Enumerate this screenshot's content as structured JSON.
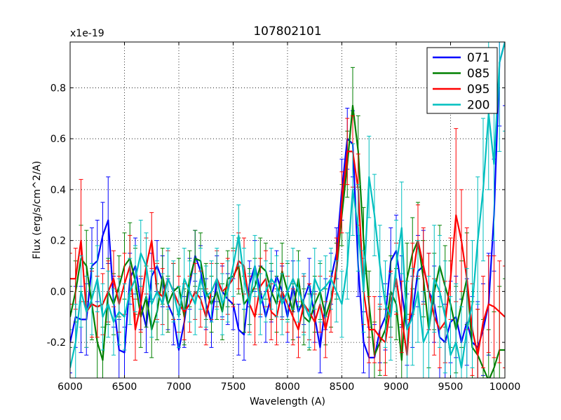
{
  "chart_data": {
    "type": "line",
    "title": "107802101",
    "xlabel": "Wavelength (A)",
    "ylabel": "Flux (erg/s/cm^2/A)",
    "y_scale_label": "x1e-19",
    "xlim": [
      6000,
      10000
    ],
    "ylim": [
      -0.34,
      0.98
    ],
    "grid": true,
    "legend_position": "top-right",
    "x_ticks": [
      6000,
      6500,
      7000,
      7500,
      8000,
      8500,
      9000,
      9500,
      10000
    ],
    "x_tick_labels": [
      "6000",
      "6500",
      "7000",
      "7500",
      "8000",
      "8500",
      "9000",
      "9500",
      "10000"
    ],
    "y_ticks": [
      -0.2,
      0.0,
      0.2,
      0.4,
      0.6,
      0.8
    ],
    "y_tick_labels": [
      "-0.2",
      "0.0",
      "0.2",
      "0.4",
      "0.6",
      "0.8"
    ],
    "series": [
      {
        "name": "071",
        "color": "#0000ff",
        "x": [
          6000,
          6050,
          6100,
          6150,
          6200,
          6250,
          6300,
          6350,
          6400,
          6450,
          6500,
          6550,
          6600,
          6650,
          6700,
          6750,
          6800,
          6850,
          6900,
          6950,
          7000,
          7050,
          7100,
          7150,
          7200,
          7250,
          7300,
          7350,
          7400,
          7450,
          7500,
          7550,
          7600,
          7650,
          7700,
          7750,
          7800,
          7850,
          7900,
          7950,
          8000,
          8050,
          8100,
          8150,
          8200,
          8250,
          8300,
          8350,
          8400,
          8450,
          8500,
          8550,
          8600,
          8650,
          8700,
          8750,
          8800,
          8850,
          8900,
          8950,
          9000,
          9050,
          9100,
          9150,
          9200,
          9250,
          9300,
          9350,
          9400,
          9450,
          9500,
          9550,
          9600,
          9650,
          9700,
          9750,
          9800,
          9850,
          9900,
          9950,
          10000
        ],
        "y": [
          -0.2,
          -0.1,
          -0.11,
          -0.11,
          0.1,
          0.12,
          0.22,
          0.28,
          -0.04,
          -0.23,
          -0.24,
          0.05,
          0.1,
          -0.05,
          -0.14,
          0.06,
          0.1,
          0.04,
          -0.05,
          -0.1,
          -0.23,
          -0.12,
          0.03,
          0.14,
          0.08,
          -0.05,
          -0.12,
          0.05,
          0.0,
          -0.03,
          -0.05,
          -0.15,
          -0.17,
          0.03,
          0.1,
          0.0,
          -0.1,
          -0.02,
          0.06,
          0.0,
          -0.1,
          0.02,
          -0.08,
          -0.03,
          0.03,
          -0.1,
          -0.22,
          -0.05,
          0.05,
          0.15,
          0.4,
          0.6,
          0.58,
          0.1,
          -0.2,
          -0.26,
          -0.26,
          -0.15,
          -0.1,
          0.12,
          0.16,
          0.0,
          -0.15,
          -0.08,
          0.08,
          0.1,
          0.0,
          -0.05,
          -0.18,
          -0.2,
          -0.12,
          -0.1,
          -0.2,
          -0.12,
          -0.2,
          -0.22,
          -0.15,
          -0.05,
          0.3,
          0.9,
          0.98
        ],
        "err": [
          0.12,
          0.12,
          0.13,
          0.14,
          0.15,
          0.16,
          0.13,
          0.17,
          0.1,
          0.12,
          0.1,
          0.1,
          0.11,
          0.1,
          0.1,
          0.09,
          0.1,
          0.1,
          0.1,
          0.11,
          0.12,
          0.1,
          0.1,
          0.1,
          0.1,
          0.1,
          0.1,
          0.09,
          0.1,
          0.1,
          0.1,
          0.1,
          0.1,
          0.09,
          0.1,
          0.1,
          0.1,
          0.1,
          0.1,
          0.1,
          0.1,
          0.1,
          0.1,
          0.1,
          0.1,
          0.1,
          0.1,
          0.1,
          0.1,
          0.1,
          0.12,
          0.12,
          0.13,
          0.12,
          0.12,
          0.12,
          0.13,
          0.13,
          0.13,
          0.13,
          0.14,
          0.14,
          0.14,
          0.14,
          0.14,
          0.14,
          0.15,
          0.15,
          0.16,
          0.15,
          0.16,
          0.16,
          0.17,
          0.17,
          0.18,
          0.18,
          0.18,
          0.2,
          0.22,
          0.25,
          0.25
        ]
      },
      {
        "name": "085",
        "color": "#008000",
        "x": [
          6000,
          6050,
          6100,
          6150,
          6200,
          6250,
          6300,
          6350,
          6400,
          6450,
          6500,
          6550,
          6600,
          6650,
          6700,
          6750,
          6800,
          6850,
          6900,
          6950,
          7000,
          7050,
          7100,
          7150,
          7200,
          7250,
          7300,
          7350,
          7400,
          7450,
          7500,
          7550,
          7600,
          7650,
          7700,
          7750,
          7800,
          7850,
          7900,
          7950,
          8000,
          8050,
          8100,
          8150,
          8200,
          8250,
          8300,
          8350,
          8400,
          8450,
          8500,
          8550,
          8600,
          8650,
          8700,
          8750,
          8800,
          8850,
          8900,
          8950,
          9000,
          9050,
          9100,
          9150,
          9200,
          9250,
          9300,
          9350,
          9400,
          9450,
          9500,
          9550,
          9600,
          9650,
          9700,
          9750,
          9800,
          9850,
          9900,
          9950,
          10000
        ],
        "y": [
          -0.1,
          0.0,
          0.13,
          0.1,
          -0.05,
          -0.2,
          -0.27,
          0.0,
          -0.05,
          0.02,
          0.1,
          0.13,
          0.04,
          -0.1,
          -0.02,
          -0.15,
          -0.08,
          0.06,
          -0.05,
          0.0,
          0.02,
          -0.1,
          0.05,
          0.13,
          0.12,
          0.0,
          -0.05,
          0.0,
          -0.08,
          0.05,
          0.06,
          0.1,
          -0.05,
          -0.02,
          0.02,
          0.1,
          0.08,
          0.0,
          -0.05,
          0.08,
          0.0,
          -0.08,
          0.05,
          -0.1,
          -0.12,
          -0.05,
          0.0,
          -0.1,
          -0.03,
          0.08,
          0.3,
          0.5,
          0.73,
          0.55,
          0.2,
          -0.05,
          -0.25,
          -0.2,
          -0.15,
          0.0,
          -0.05,
          -0.27,
          0.05,
          0.15,
          0.2,
          0.05,
          -0.15,
          0.0,
          0.1,
          0.02,
          -0.05,
          -0.15,
          -0.05,
          0.05,
          -0.22,
          -0.25,
          -0.3,
          -0.35,
          -0.3,
          -0.23,
          -0.23
        ],
        "err": [
          0.12,
          0.12,
          0.13,
          0.14,
          0.14,
          0.14,
          0.13,
          0.13,
          0.12,
          0.12,
          0.13,
          0.14,
          0.13,
          0.12,
          0.12,
          0.11,
          0.11,
          0.11,
          0.11,
          0.11,
          0.11,
          0.11,
          0.11,
          0.11,
          0.11,
          0.11,
          0.11,
          0.11,
          0.11,
          0.11,
          0.11,
          0.11,
          0.11,
          0.11,
          0.11,
          0.11,
          0.11,
          0.11,
          0.11,
          0.11,
          0.11,
          0.11,
          0.11,
          0.11,
          0.11,
          0.11,
          0.11,
          0.11,
          0.11,
          0.11,
          0.12,
          0.13,
          0.15,
          0.14,
          0.13,
          0.13,
          0.13,
          0.13,
          0.13,
          0.14,
          0.14,
          0.14,
          0.14,
          0.14,
          0.15,
          0.15,
          0.15,
          0.15,
          0.16,
          0.16,
          0.17,
          0.17,
          0.17,
          0.18,
          0.18,
          0.18,
          0.19,
          0.2,
          0.22,
          0.25,
          0.28
        ]
      },
      {
        "name": "095",
        "color": "#ff0000",
        "x": [
          6000,
          6050,
          6100,
          6150,
          6200,
          6250,
          6300,
          6350,
          6400,
          6450,
          6500,
          6550,
          6600,
          6650,
          6700,
          6750,
          6800,
          6850,
          6900,
          6950,
          7000,
          7050,
          7100,
          7150,
          7200,
          7250,
          7300,
          7350,
          7400,
          7450,
          7500,
          7550,
          7600,
          7650,
          7700,
          7750,
          7800,
          7850,
          7900,
          7950,
          8000,
          8050,
          8100,
          8150,
          8200,
          8250,
          8300,
          8350,
          8400,
          8450,
          8500,
          8550,
          8600,
          8650,
          8700,
          8750,
          8800,
          8850,
          8900,
          8950,
          9000,
          9050,
          9100,
          9150,
          9200,
          9250,
          9300,
          9350,
          9400,
          9450,
          9500,
          9550,
          9600,
          9650,
          9700,
          9750,
          9800,
          9850,
          9900,
          9950,
          10000
        ],
        "y": [
          0.05,
          0.05,
          0.2,
          -0.08,
          -0.05,
          -0.06,
          -0.05,
          0.0,
          0.05,
          -0.05,
          0.03,
          0.1,
          -0.15,
          -0.05,
          0.1,
          0.2,
          0.0,
          -0.02,
          0.05,
          0.0,
          -0.05,
          -0.08,
          -0.05,
          0.0,
          -0.03,
          -0.1,
          0.0,
          0.05,
          0.0,
          0.02,
          0.05,
          0.12,
          0.1,
          -0.05,
          -0.1,
          0.02,
          0.05,
          -0.08,
          -0.1,
          0.0,
          -0.05,
          -0.1,
          -0.15,
          -0.05,
          -0.08,
          -0.12,
          -0.05,
          -0.15,
          -0.05,
          0.1,
          0.35,
          0.55,
          0.55,
          0.4,
          0.0,
          -0.15,
          -0.15,
          -0.18,
          -0.2,
          -0.05,
          0.05,
          -0.1,
          -0.25,
          0.05,
          0.2,
          0.1,
          0.0,
          -0.1,
          -0.15,
          -0.12,
          0.05,
          0.3,
          0.2,
          0.05,
          -0.15,
          -0.25,
          -0.12,
          -0.05,
          -0.06,
          -0.08,
          -0.1
        ],
        "err": [
          0.1,
          0.12,
          0.24,
          0.14,
          0.13,
          0.12,
          0.12,
          0.12,
          0.11,
          0.11,
          0.12,
          0.12,
          0.12,
          0.11,
          0.11,
          0.11,
          0.11,
          0.11,
          0.11,
          0.11,
          0.11,
          0.11,
          0.11,
          0.11,
          0.11,
          0.11,
          0.11,
          0.11,
          0.11,
          0.11,
          0.11,
          0.11,
          0.11,
          0.11,
          0.11,
          0.11,
          0.11,
          0.11,
          0.11,
          0.11,
          0.11,
          0.11,
          0.11,
          0.11,
          0.11,
          0.11,
          0.11,
          0.11,
          0.11,
          0.11,
          0.12,
          0.13,
          0.14,
          0.14,
          0.13,
          0.13,
          0.13,
          0.13,
          0.13,
          0.13,
          0.14,
          0.14,
          0.14,
          0.14,
          0.14,
          0.15,
          0.15,
          0.15,
          0.15,
          0.16,
          0.16,
          0.34,
          0.2,
          0.2,
          0.18,
          0.18,
          0.18,
          0.19,
          0.2,
          0.2,
          0.2
        ]
      },
      {
        "name": "200",
        "color": "#00bfbf",
        "x": [
          6000,
          6050,
          6100,
          6150,
          6200,
          6250,
          6300,
          6350,
          6400,
          6450,
          6500,
          6550,
          6600,
          6650,
          6700,
          6750,
          6800,
          6850,
          6900,
          6950,
          7000,
          7050,
          7100,
          7150,
          7200,
          7250,
          7300,
          7350,
          7400,
          7450,
          7500,
          7550,
          7600,
          7650,
          7700,
          7750,
          7800,
          7850,
          7900,
          7950,
          8000,
          8050,
          8100,
          8150,
          8200,
          8250,
          8300,
          8350,
          8400,
          8450,
          8500,
          8550,
          8600,
          8650,
          8700,
          8750,
          8800,
          8850,
          8900,
          8950,
          9000,
          9050,
          9100,
          9150,
          9200,
          9250,
          9300,
          9350,
          9400,
          9450,
          9500,
          9550,
          9600,
          9650,
          9700,
          9750,
          9800,
          9850,
          9900,
          9950,
          10000
        ],
        "y": [
          -0.3,
          -0.2,
          0.0,
          -0.08,
          -0.03,
          0.05,
          -0.1,
          -0.05,
          -0.12,
          -0.08,
          -0.1,
          0.0,
          0.05,
          0.15,
          0.1,
          -0.05,
          0.0,
          -0.05,
          0.05,
          0.0,
          -0.1,
          0.05,
          0.0,
          -0.05,
          0.05,
          -0.02,
          0.0,
          0.05,
          -0.05,
          0.0,
          0.1,
          0.22,
          0.05,
          -0.05,
          0.1,
          -0.05,
          0.0,
          0.05,
          0.02,
          -0.05,
          0.0,
          0.05,
          0.0,
          -0.05,
          -0.1,
          0.05,
          0.0,
          0.02,
          0.05,
          0.0,
          -0.05,
          0.1,
          0.4,
          0.25,
          0.0,
          0.45,
          0.3,
          0.1,
          -0.05,
          -0.1,
          0.1,
          0.25,
          -0.15,
          -0.1,
          0.0,
          -0.2,
          -0.15,
          0.05,
          0.0,
          -0.1,
          -0.25,
          -0.2,
          -0.3,
          -0.15,
          -0.05,
          0.2,
          0.4,
          0.7,
          0.5,
          0.9,
          0.98
        ],
        "err": [
          0.15,
          0.15,
          0.14,
          0.14,
          0.14,
          0.13,
          0.13,
          0.13,
          0.13,
          0.13,
          0.13,
          0.13,
          0.13,
          0.13,
          0.13,
          0.13,
          0.12,
          0.12,
          0.12,
          0.12,
          0.12,
          0.12,
          0.12,
          0.12,
          0.12,
          0.12,
          0.12,
          0.12,
          0.12,
          0.12,
          0.12,
          0.12,
          0.12,
          0.12,
          0.12,
          0.12,
          0.12,
          0.12,
          0.12,
          0.12,
          0.12,
          0.12,
          0.12,
          0.12,
          0.12,
          0.12,
          0.12,
          0.12,
          0.12,
          0.12,
          0.13,
          0.13,
          0.18,
          0.17,
          0.16,
          0.16,
          0.16,
          0.16,
          0.17,
          0.17,
          0.18,
          0.18,
          0.19,
          0.19,
          0.2,
          0.2,
          0.21,
          0.21,
          0.22,
          0.22,
          0.23,
          0.23,
          0.24,
          0.24,
          0.25,
          0.25,
          0.28,
          0.3,
          0.3,
          0.35,
          0.35
        ]
      }
    ]
  }
}
